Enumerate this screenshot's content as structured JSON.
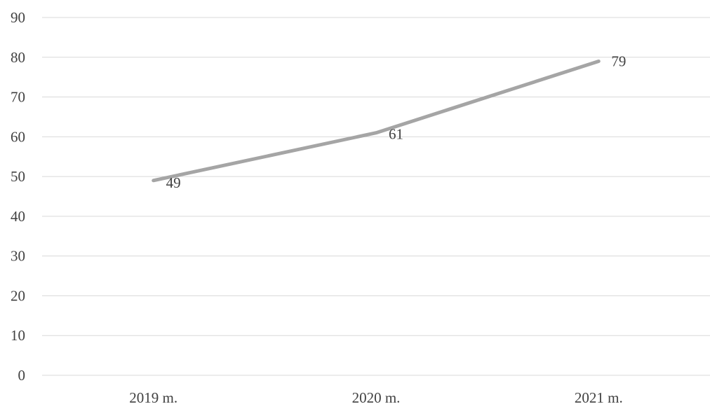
{
  "chart_data": {
    "type": "line",
    "title": "",
    "xlabel": "",
    "ylabel": "",
    "categories": [
      "2019 m.",
      "2020 m.",
      "2021 m."
    ],
    "series": [
      {
        "values": [
          49,
          61,
          79
        ],
        "color": "#a5a5a5"
      }
    ],
    "data_labels": [
      "49",
      "61",
      "79"
    ],
    "ylim": [
      0,
      90
    ],
    "y_ticks": [
      0,
      10,
      20,
      30,
      40,
      50,
      60,
      70,
      80,
      90
    ],
    "y_tick_labels": [
      "0",
      "10",
      "20",
      "30",
      "40",
      "50",
      "60",
      "70",
      "80",
      "90"
    ],
    "grid": true,
    "legend": "none",
    "gridline_color": "#d9d9d9",
    "text_color": "#404040"
  }
}
